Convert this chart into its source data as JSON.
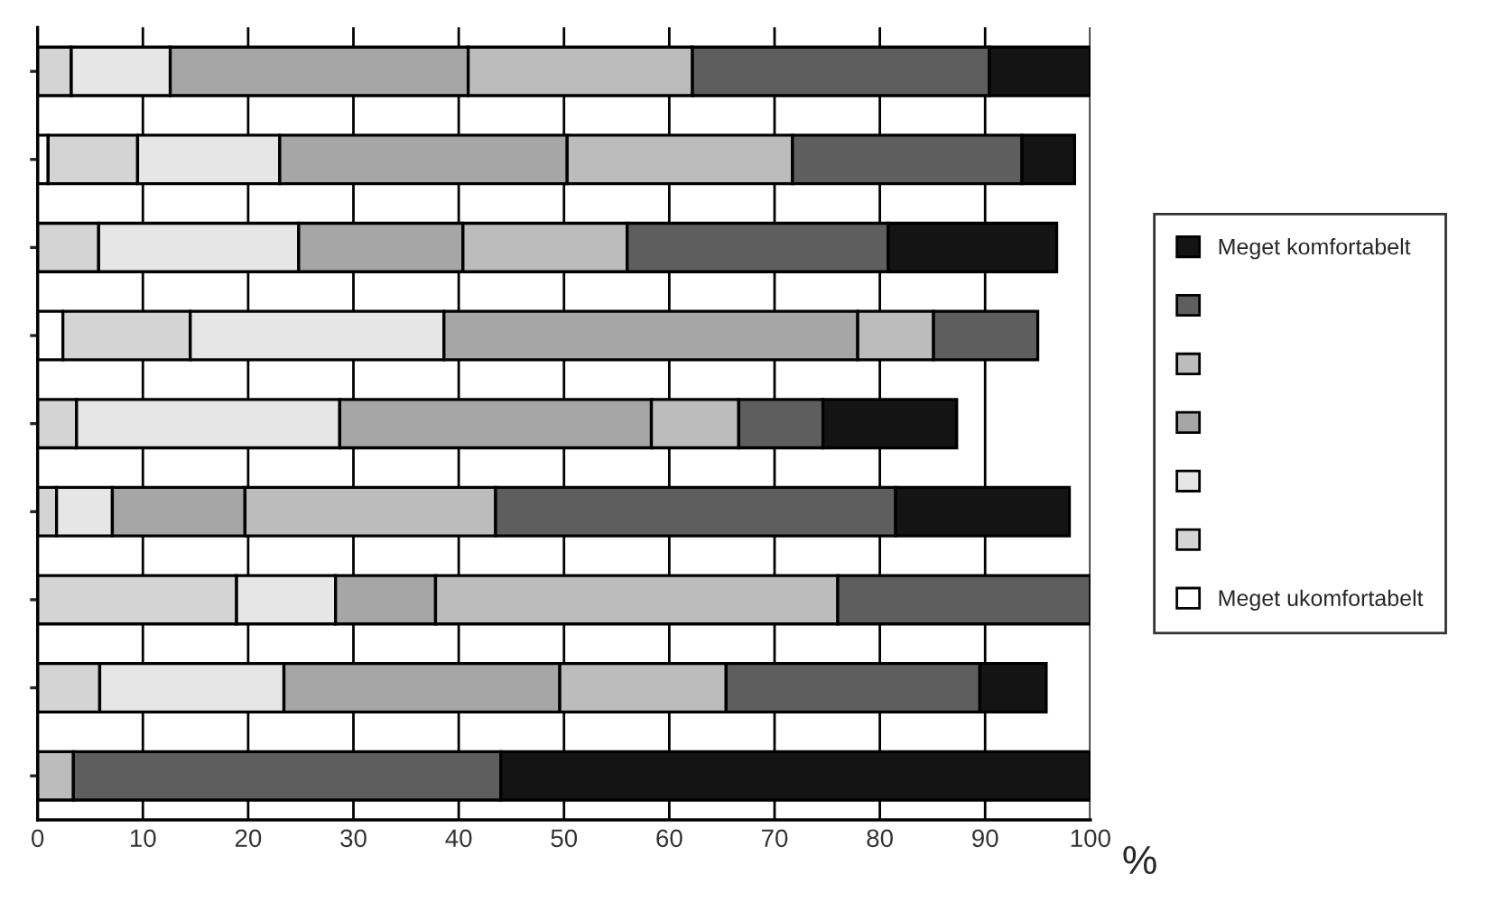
{
  "chart_data": {
    "type": "bar",
    "orientation": "horizontal",
    "stacked": true,
    "categories": [
      null,
      null,
      null,
      null,
      null,
      null,
      null,
      null,
      null
    ],
    "series": [
      {
        "name": "Meget ukomfortabelt",
        "color": "#ffffff",
        "values": [
          0,
          1,
          0,
          2.4,
          0,
          0,
          0,
          0,
          0
        ]
      },
      {
        "color": "#d4d4d4",
        "values": [
          3.2,
          8.5,
          5.8,
          12.1,
          3.7,
          1.8,
          18.9,
          5.9,
          0
        ]
      },
      {
        "color": "#e6e6e6",
        "values": [
          9.4,
          13.5,
          19,
          24.1,
          25,
          5.3,
          9.4,
          17.5,
          0
        ]
      },
      {
        "color": "#a6a6a6",
        "values": [
          28.3,
          27.3,
          15.6,
          39.3,
          29.6,
          12.6,
          9.5,
          26.2,
          0
        ]
      },
      {
        "color": "#bcbcbc",
        "values": [
          21.3,
          21.4,
          15.6,
          7.2,
          8.3,
          23.8,
          38.2,
          15.8,
          3.4
        ]
      },
      {
        "color": "#5e5e5e",
        "values": [
          28.2,
          21.8,
          24.8,
          9.9,
          8,
          38,
          24,
          24.1,
          40.6
        ]
      },
      {
        "name": "Meget komfortabelt",
        "color": "#141414",
        "values": [
          9.6,
          5,
          16,
          0,
          12.7,
          16.5,
          0,
          6.3,
          56
        ]
      }
    ],
    "xlabel": "%",
    "xlim": [
      0,
      100
    ],
    "xticks": [
      0,
      10,
      20,
      30,
      40,
      50,
      60,
      70,
      80,
      90,
      100
    ],
    "grid": "x",
    "legend": "right",
    "tick_labels": "x"
  }
}
